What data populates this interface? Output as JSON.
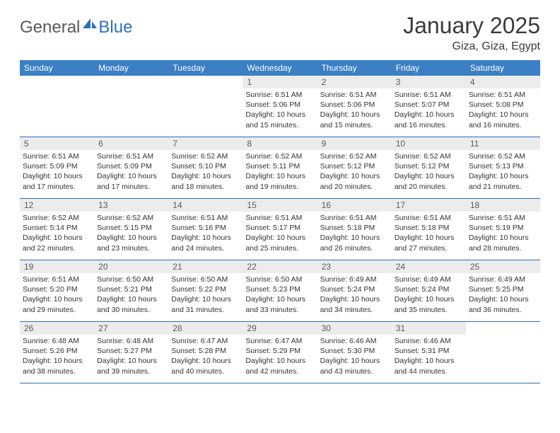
{
  "brand": {
    "textGray": "General",
    "textBlue": "Blue"
  },
  "title": "January 2025",
  "location": "Giza, Giza, Egypt",
  "colors": {
    "headerBg": "#3b7fc4",
    "headerText": "#ffffff",
    "dayNumBg": "#ececec",
    "dayNumText": "#5a5a5a",
    "borderColor": "#2b71b8",
    "bodyText": "#333333",
    "logoGray": "#5a5a5a",
    "logoBlue": "#2b71b8"
  },
  "dayNames": [
    "Sunday",
    "Monday",
    "Tuesday",
    "Wednesday",
    "Thursday",
    "Friday",
    "Saturday"
  ],
  "weeks": [
    [
      null,
      null,
      null,
      {
        "n": "1",
        "sr": "6:51 AM",
        "ss": "5:06 PM",
        "dl": "10 hours and 15 minutes."
      },
      {
        "n": "2",
        "sr": "6:51 AM",
        "ss": "5:06 PM",
        "dl": "10 hours and 15 minutes."
      },
      {
        "n": "3",
        "sr": "6:51 AM",
        "ss": "5:07 PM",
        "dl": "10 hours and 16 minutes."
      },
      {
        "n": "4",
        "sr": "6:51 AM",
        "ss": "5:08 PM",
        "dl": "10 hours and 16 minutes."
      }
    ],
    [
      {
        "n": "5",
        "sr": "6:51 AM",
        "ss": "5:09 PM",
        "dl": "10 hours and 17 minutes."
      },
      {
        "n": "6",
        "sr": "6:51 AM",
        "ss": "5:09 PM",
        "dl": "10 hours and 17 minutes."
      },
      {
        "n": "7",
        "sr": "6:52 AM",
        "ss": "5:10 PM",
        "dl": "10 hours and 18 minutes."
      },
      {
        "n": "8",
        "sr": "6:52 AM",
        "ss": "5:11 PM",
        "dl": "10 hours and 19 minutes."
      },
      {
        "n": "9",
        "sr": "6:52 AM",
        "ss": "5:12 PM",
        "dl": "10 hours and 20 minutes."
      },
      {
        "n": "10",
        "sr": "6:52 AM",
        "ss": "5:12 PM",
        "dl": "10 hours and 20 minutes."
      },
      {
        "n": "11",
        "sr": "6:52 AM",
        "ss": "5:13 PM",
        "dl": "10 hours and 21 minutes."
      }
    ],
    [
      {
        "n": "12",
        "sr": "6:52 AM",
        "ss": "5:14 PM",
        "dl": "10 hours and 22 minutes."
      },
      {
        "n": "13",
        "sr": "6:52 AM",
        "ss": "5:15 PM",
        "dl": "10 hours and 23 minutes."
      },
      {
        "n": "14",
        "sr": "6:51 AM",
        "ss": "5:16 PM",
        "dl": "10 hours and 24 minutes."
      },
      {
        "n": "15",
        "sr": "6:51 AM",
        "ss": "5:17 PM",
        "dl": "10 hours and 25 minutes."
      },
      {
        "n": "16",
        "sr": "6:51 AM",
        "ss": "5:18 PM",
        "dl": "10 hours and 26 minutes."
      },
      {
        "n": "17",
        "sr": "6:51 AM",
        "ss": "5:18 PM",
        "dl": "10 hours and 27 minutes."
      },
      {
        "n": "18",
        "sr": "6:51 AM",
        "ss": "5:19 PM",
        "dl": "10 hours and 28 minutes."
      }
    ],
    [
      {
        "n": "19",
        "sr": "6:51 AM",
        "ss": "5:20 PM",
        "dl": "10 hours and 29 minutes."
      },
      {
        "n": "20",
        "sr": "6:50 AM",
        "ss": "5:21 PM",
        "dl": "10 hours and 30 minutes."
      },
      {
        "n": "21",
        "sr": "6:50 AM",
        "ss": "5:22 PM",
        "dl": "10 hours and 31 minutes."
      },
      {
        "n": "22",
        "sr": "6:50 AM",
        "ss": "5:23 PM",
        "dl": "10 hours and 33 minutes."
      },
      {
        "n": "23",
        "sr": "6:49 AM",
        "ss": "5:24 PM",
        "dl": "10 hours and 34 minutes."
      },
      {
        "n": "24",
        "sr": "6:49 AM",
        "ss": "5:24 PM",
        "dl": "10 hours and 35 minutes."
      },
      {
        "n": "25",
        "sr": "6:49 AM",
        "ss": "5:25 PM",
        "dl": "10 hours and 36 minutes."
      }
    ],
    [
      {
        "n": "26",
        "sr": "6:48 AM",
        "ss": "5:26 PM",
        "dl": "10 hours and 38 minutes."
      },
      {
        "n": "27",
        "sr": "6:48 AM",
        "ss": "5:27 PM",
        "dl": "10 hours and 39 minutes."
      },
      {
        "n": "28",
        "sr": "6:47 AM",
        "ss": "5:28 PM",
        "dl": "10 hours and 40 minutes."
      },
      {
        "n": "29",
        "sr": "6:47 AM",
        "ss": "5:29 PM",
        "dl": "10 hours and 42 minutes."
      },
      {
        "n": "30",
        "sr": "6:46 AM",
        "ss": "5:30 PM",
        "dl": "10 hours and 43 minutes."
      },
      {
        "n": "31",
        "sr": "6:46 AM",
        "ss": "5:31 PM",
        "dl": "10 hours and 44 minutes."
      },
      null
    ]
  ],
  "labels": {
    "sunrise": "Sunrise: ",
    "sunset": "Sunset: ",
    "daylight": "Daylight: "
  }
}
